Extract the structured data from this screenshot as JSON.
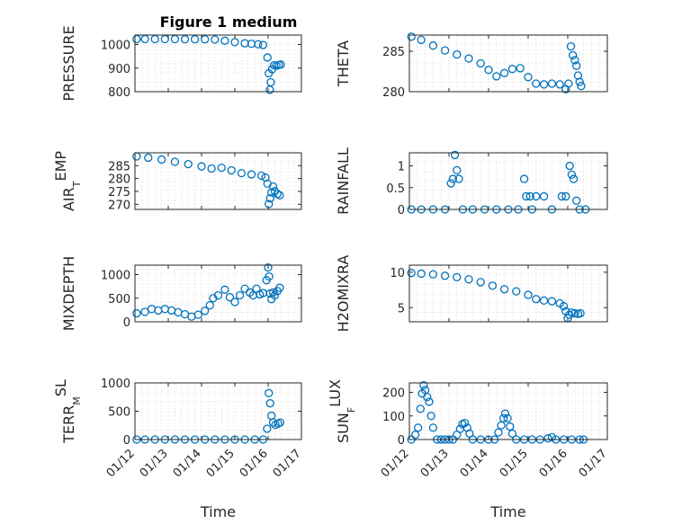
{
  "title": "Figure 1 medium",
  "colors": {
    "marker": "#0072BD",
    "axis": "#262626",
    "grid": "#d3d3d3",
    "background": "#ffffff"
  },
  "chart_data": {
    "type": "scatter",
    "x_ticks": [
      "01/12",
      "01/13",
      "01/14",
      "01/15",
      "01/16",
      "01/17"
    ],
    "xlabel": "Time",
    "xlim": [
      0,
      5
    ],
    "grid": true,
    "panels": [
      {
        "ylabel": "PRESSURE",
        "ylabel_sub": "",
        "ylabel_rest": "",
        "ylim": [
          800,
          1040
        ],
        "yticks": [
          800,
          900,
          1000
        ],
        "points": [
          [
            0.05,
            1023
          ],
          [
            0.3,
            1023
          ],
          [
            0.6,
            1023
          ],
          [
            0.9,
            1023
          ],
          [
            1.2,
            1023
          ],
          [
            1.5,
            1022
          ],
          [
            1.8,
            1022
          ],
          [
            2.1,
            1022
          ],
          [
            2.4,
            1021
          ],
          [
            2.7,
            1016
          ],
          [
            3.0,
            1010
          ],
          [
            3.3,
            1005
          ],
          [
            3.5,
            1003
          ],
          [
            3.7,
            1001
          ],
          [
            3.85,
            998
          ],
          [
            3.98,
            945
          ],
          [
            4.02,
            878
          ],
          [
            4.05,
            808
          ],
          [
            4.08,
            840
          ],
          [
            4.12,
            895
          ],
          [
            4.18,
            912
          ],
          [
            4.25,
            910
          ],
          [
            4.32,
            913
          ],
          [
            4.38,
            915
          ]
        ]
      },
      {
        "ylabel": "THETA",
        "ylabel_sub": "",
        "ylabel_rest": "",
        "ylim": [
          280,
          287
        ],
        "yticks": [
          280,
          285
        ],
        "points": [
          [
            0.05,
            286.8
          ],
          [
            0.3,
            286.4
          ],
          [
            0.6,
            285.7
          ],
          [
            0.9,
            285.1
          ],
          [
            1.2,
            284.6
          ],
          [
            1.5,
            284.1
          ],
          [
            1.8,
            283.5
          ],
          [
            2.0,
            282.7
          ],
          [
            2.2,
            281.9
          ],
          [
            2.4,
            282.3
          ],
          [
            2.6,
            282.8
          ],
          [
            2.8,
            282.9
          ],
          [
            3.0,
            281.8
          ],
          [
            3.2,
            281.0
          ],
          [
            3.4,
            280.9
          ],
          [
            3.6,
            281.0
          ],
          [
            3.8,
            280.9
          ],
          [
            3.95,
            280.3
          ],
          [
            4.02,
            281.0
          ],
          [
            4.08,
            285.6
          ],
          [
            4.13,
            284.5
          ],
          [
            4.18,
            283.9
          ],
          [
            4.22,
            283.2
          ],
          [
            4.26,
            282.0
          ],
          [
            4.3,
            281.2
          ],
          [
            4.34,
            280.7
          ]
        ]
      },
      {
        "ylabel": "AIR",
        "ylabel_sub": "T",
        "ylabel_rest": "EMP",
        "ylim": [
          268,
          290
        ],
        "yticks": [
          270,
          275,
          280,
          285
        ],
        "points": [
          [
            0.05,
            288.6
          ],
          [
            0.4,
            288.1
          ],
          [
            0.8,
            287.4
          ],
          [
            1.2,
            286.5
          ],
          [
            1.6,
            285.6
          ],
          [
            2.0,
            284.7
          ],
          [
            2.3,
            283.9
          ],
          [
            2.6,
            284.2
          ],
          [
            2.9,
            283.2
          ],
          [
            3.2,
            282.1
          ],
          [
            3.5,
            281.6
          ],
          [
            3.8,
            281.1
          ],
          [
            3.92,
            280.4
          ],
          [
            3.98,
            278.0
          ],
          [
            4.02,
            270.1
          ],
          [
            4.06,
            272.3
          ],
          [
            4.1,
            274.6
          ],
          [
            4.15,
            276.9
          ],
          [
            4.2,
            275.1
          ],
          [
            4.28,
            274.0
          ],
          [
            4.35,
            273.5
          ]
        ]
      },
      {
        "ylabel": "RAINFALL",
        "ylabel_sub": "",
        "ylabel_rest": "",
        "ylim": [
          0,
          1.3
        ],
        "yticks": [
          0,
          0.5,
          1
        ],
        "points": [
          [
            0.05,
            0
          ],
          [
            0.3,
            0
          ],
          [
            0.6,
            0
          ],
          [
            0.9,
            0
          ],
          [
            1.05,
            0.6
          ],
          [
            1.1,
            0.7
          ],
          [
            1.15,
            1.25
          ],
          [
            1.2,
            0.9
          ],
          [
            1.25,
            0.7
          ],
          [
            1.35,
            0
          ],
          [
            1.6,
            0
          ],
          [
            1.9,
            0
          ],
          [
            2.2,
            0
          ],
          [
            2.5,
            0
          ],
          [
            2.75,
            0
          ],
          [
            2.9,
            0.7
          ],
          [
            2.95,
            0.3
          ],
          [
            3.05,
            0.3
          ],
          [
            3.1,
            0
          ],
          [
            3.2,
            0.3
          ],
          [
            3.4,
            0.3
          ],
          [
            3.6,
            0
          ],
          [
            3.85,
            0.3
          ],
          [
            3.95,
            0.3
          ],
          [
            4.05,
            1.0
          ],
          [
            4.1,
            0.8
          ],
          [
            4.15,
            0.7
          ],
          [
            4.22,
            0.2
          ],
          [
            4.3,
            0
          ],
          [
            4.45,
            0
          ]
        ]
      },
      {
        "ylabel": "MIXDEPTH",
        "ylabel_sub": "",
        "ylabel_rest": "",
        "ylim": [
          0,
          1200
        ],
        "yticks": [
          0,
          500,
          1000
        ],
        "points": [
          [
            0.05,
            180
          ],
          [
            0.3,
            210
          ],
          [
            0.5,
            270
          ],
          [
            0.7,
            240
          ],
          [
            0.9,
            270
          ],
          [
            1.1,
            240
          ],
          [
            1.3,
            200
          ],
          [
            1.5,
            160
          ],
          [
            1.7,
            110
          ],
          [
            1.9,
            150
          ],
          [
            2.1,
            230
          ],
          [
            2.25,
            350
          ],
          [
            2.35,
            500
          ],
          [
            2.5,
            560
          ],
          [
            2.7,
            680
          ],
          [
            2.85,
            520
          ],
          [
            3.0,
            420
          ],
          [
            3.15,
            560
          ],
          [
            3.3,
            700
          ],
          [
            3.45,
            620
          ],
          [
            3.55,
            560
          ],
          [
            3.65,
            700
          ],
          [
            3.75,
            580
          ],
          [
            3.85,
            610
          ],
          [
            3.95,
            880
          ],
          [
            4.0,
            1150
          ],
          [
            4.03,
            960
          ],
          [
            4.06,
            600
          ],
          [
            4.1,
            480
          ],
          [
            4.15,
            620
          ],
          [
            4.2,
            560
          ],
          [
            4.28,
            650
          ],
          [
            4.35,
            720
          ]
        ]
      },
      {
        "ylabel": "H2OMIXRA",
        "ylabel_sub": "",
        "ylabel_rest": "",
        "ylim": [
          3,
          11
        ],
        "yticks": [
          5,
          10
        ],
        "points": [
          [
            0.05,
            9.9
          ],
          [
            0.3,
            9.8
          ],
          [
            0.6,
            9.7
          ],
          [
            0.9,
            9.5
          ],
          [
            1.2,
            9.3
          ],
          [
            1.5,
            9.0
          ],
          [
            1.8,
            8.6
          ],
          [
            2.1,
            8.1
          ],
          [
            2.4,
            7.6
          ],
          [
            2.7,
            7.3
          ],
          [
            3.0,
            6.8
          ],
          [
            3.2,
            6.2
          ],
          [
            3.4,
            6.0
          ],
          [
            3.6,
            5.9
          ],
          [
            3.8,
            5.6
          ],
          [
            3.9,
            5.2
          ],
          [
            3.95,
            4.5
          ],
          [
            4.0,
            3.5
          ],
          [
            4.04,
            4.0
          ],
          [
            4.1,
            4.3
          ],
          [
            4.18,
            4.2
          ],
          [
            4.26,
            4.1
          ],
          [
            4.32,
            4.2
          ]
        ]
      },
      {
        "ylabel": "TERR",
        "ylabel_sub": "M",
        "ylabel_rest": "SL",
        "ylim": [
          0,
          1000
        ],
        "yticks": [
          0,
          500,
          1000
        ],
        "points": [
          [
            0.05,
            0
          ],
          [
            0.3,
            0
          ],
          [
            0.6,
            0
          ],
          [
            0.9,
            0
          ],
          [
            1.2,
            0
          ],
          [
            1.5,
            0
          ],
          [
            1.8,
            0
          ],
          [
            2.1,
            0
          ],
          [
            2.4,
            0
          ],
          [
            2.7,
            0
          ],
          [
            3.0,
            0
          ],
          [
            3.3,
            0
          ],
          [
            3.6,
            0
          ],
          [
            3.85,
            0
          ],
          [
            3.97,
            190
          ],
          [
            4.02,
            820
          ],
          [
            4.06,
            640
          ],
          [
            4.1,
            420
          ],
          [
            4.15,
            300
          ],
          [
            4.22,
            260
          ],
          [
            4.3,
            280
          ],
          [
            4.36,
            300
          ]
        ]
      },
      {
        "ylabel": "SUN",
        "ylabel_sub": "F",
        "ylabel_rest": "LUX",
        "ylim": [
          0,
          240
        ],
        "yticks": [
          0,
          100,
          200
        ],
        "points": [
          [
            0.05,
            0
          ],
          [
            0.15,
            20
          ],
          [
            0.22,
            50
          ],
          [
            0.28,
            130
          ],
          [
            0.32,
            195
          ],
          [
            0.36,
            230
          ],
          [
            0.4,
            210
          ],
          [
            0.45,
            180
          ],
          [
            0.5,
            160
          ],
          [
            0.55,
            100
          ],
          [
            0.6,
            50
          ],
          [
            0.7,
            0
          ],
          [
            0.8,
            0
          ],
          [
            0.9,
            0
          ],
          [
            1.0,
            0
          ],
          [
            1.1,
            0
          ],
          [
            1.2,
            20
          ],
          [
            1.28,
            45
          ],
          [
            1.34,
            65
          ],
          [
            1.4,
            70
          ],
          [
            1.46,
            50
          ],
          [
            1.52,
            25
          ],
          [
            1.6,
            0
          ],
          [
            1.8,
            0
          ],
          [
            2.0,
            0
          ],
          [
            2.15,
            0
          ],
          [
            2.25,
            30
          ],
          [
            2.32,
            60
          ],
          [
            2.38,
            90
          ],
          [
            2.42,
            110
          ],
          [
            2.48,
            90
          ],
          [
            2.54,
            55
          ],
          [
            2.6,
            25
          ],
          [
            2.7,
            0
          ],
          [
            2.9,
            0
          ],
          [
            3.1,
            0
          ],
          [
            3.3,
            0
          ],
          [
            3.5,
            5
          ],
          [
            3.6,
            10
          ],
          [
            3.7,
            0
          ],
          [
            3.9,
            0
          ],
          [
            4.1,
            0
          ],
          [
            4.3,
            0
          ],
          [
            4.4,
            0
          ]
        ]
      }
    ]
  }
}
